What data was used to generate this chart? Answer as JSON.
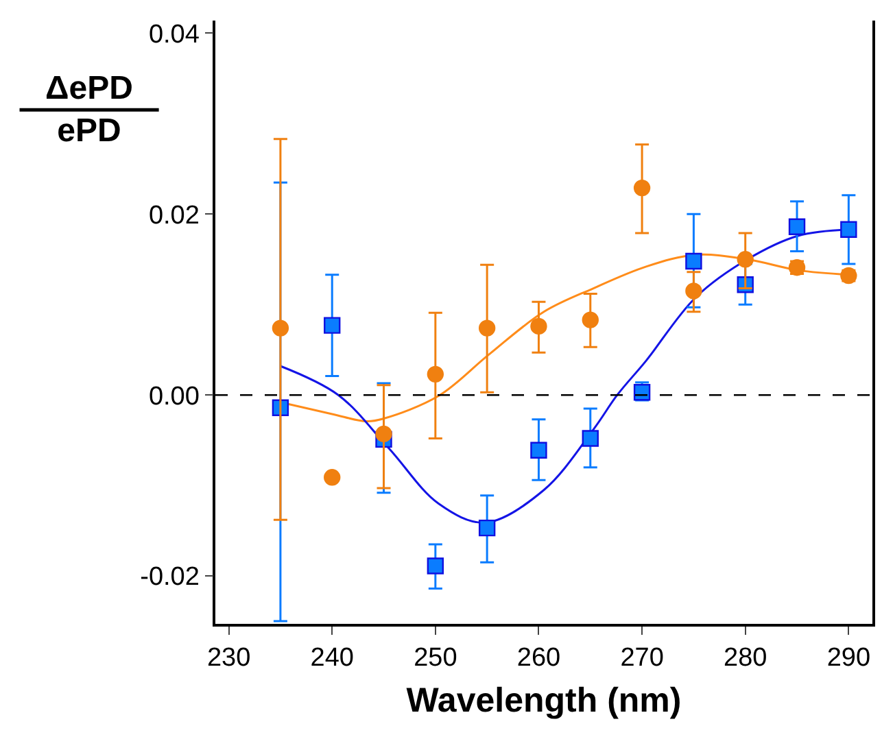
{
  "chart_data": {
    "type": "scatter",
    "xlabel": "Wavelength (nm)",
    "ylabel": "ΔePD\nePD",
    "xlim": [
      228.7,
      292.3
    ],
    "xticks": [
      230,
      240,
      250,
      260,
      270,
      280,
      290
    ],
    "ylim": [
      -0.0253,
      0.0414
    ],
    "yticks": [
      {
        "value": -0.02,
        "label": "-0.02"
      },
      {
        "value": 0,
        "label": "0.00"
      },
      {
        "value": 0.02,
        "label": "0.02"
      },
      {
        "value": 0.04,
        "label": "0.04"
      }
    ],
    "grid": false,
    "ref_lines": [
      {
        "axis": "y",
        "value": 0,
        "color": "#000000",
        "line_style": "dashed"
      }
    ],
    "series": [
      {
        "type": "line",
        "color": "#ff8c1a",
        "marker": "none",
        "x": [
          235,
          240,
          243.3,
          245,
          250.3,
          255.2,
          260.5,
          265.3,
          270.4,
          275.2,
          280.2,
          285.1,
          290
        ],
        "values": [
          -0.0008,
          -0.0021,
          -0.0029,
          -0.0026,
          -0.0001,
          0.0045,
          0.0092,
          0.0118,
          0.0142,
          0.0155,
          0.015,
          0.0138,
          0.0133
        ]
      },
      {
        "type": "line",
        "color": "#1414e6",
        "marker": "none",
        "x": [
          235,
          240.6,
          245.5,
          250.3,
          254.8,
          260.5,
          265.3,
          267.6,
          270.4,
          275.2,
          280.2,
          285.1,
          290
        ],
        "values": [
          0.0032,
          0.0,
          -0.0059,
          -0.012,
          -0.0141,
          -0.0105,
          -0.0038,
          0.0,
          0.0038,
          0.0108,
          0.015,
          0.0176,
          0.0183
        ]
      },
      {
        "color": "#0a7cff",
        "marker": "square",
        "x": [
          235,
          240,
          245,
          250,
          255,
          260,
          265,
          270,
          275,
          280,
          285,
          290
        ],
        "values": [
          -0.0014,
          0.0077,
          -0.0049,
          -0.0189,
          -0.0147,
          -0.0061,
          -0.0048,
          0.0003,
          0.0148,
          0.0122,
          0.0186,
          0.0183
        ],
        "errors": [
          [
            -0.025,
            0.0235
          ],
          [
            0.0021,
            0.0133
          ],
          [
            -0.0108,
            0.0013
          ],
          [
            -0.0214,
            -0.0165
          ],
          [
            -0.0185,
            -0.0111
          ],
          [
            -0.0094,
            -0.0027
          ],
          [
            -0.008,
            -0.0015
          ],
          [
            -0.0006,
            0.0014
          ],
          [
            0.0097,
            0.02
          ],
          [
            0.01,
            0.0145
          ],
          [
            0.0159,
            0.0214
          ],
          [
            0.0145,
            0.0221
          ]
        ]
      },
      {
        "color": "#f08010",
        "marker": "circle",
        "x": [
          235,
          240,
          245,
          250,
          255,
          260,
          265,
          270,
          275,
          280,
          285,
          290
        ],
        "values": [
          0.0074,
          -0.0091,
          -0.0043,
          0.0023,
          0.0074,
          0.0076,
          0.0083,
          0.0229,
          0.0115,
          0.015,
          0.0141,
          0.0132
        ],
        "errors": [
          [
            -0.0138,
            0.0283
          ],
          null,
          [
            -0.0103,
            0.0011
          ],
          [
            -0.0048,
            0.0091
          ],
          [
            0.0003,
            0.0144
          ],
          [
            0.0047,
            0.0103
          ],
          [
            0.0053,
            0.0112
          ],
          [
            0.0179,
            0.0277
          ],
          [
            0.0092,
            0.0136
          ],
          [
            0.0118,
            0.0179
          ],
          [
            0.0134,
            0.0148
          ],
          [
            0.0126,
            0.0138
          ]
        ]
      }
    ]
  }
}
